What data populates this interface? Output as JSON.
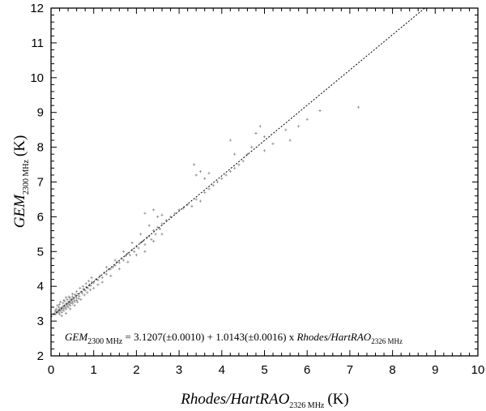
{
  "chart_data": {
    "type": "scatter",
    "xlabel": {
      "main": "Rhodes/HartRAO",
      "sub": "2326 MHz",
      "unit": "(K)"
    },
    "ylabel": {
      "main": "GEM",
      "sub": "2300 MHz",
      "unit": "(K)"
    },
    "xlim": [
      0,
      10
    ],
    "ylim": [
      2,
      12
    ],
    "x_ticks": [
      "0",
      "1",
      "2",
      "3",
      "4",
      "5",
      "6",
      "7",
      "8",
      "9",
      "10"
    ],
    "y_ticks": [
      "2",
      "3",
      "4",
      "5",
      "6",
      "7",
      "8",
      "9",
      "10",
      "11",
      "12"
    ],
    "grid": false,
    "marker_color": "#8a8a8a",
    "fit_line": {
      "intercept": 3.1207,
      "slope": 1.0143,
      "style": "dashed",
      "color": "#000000"
    },
    "equation": {
      "lhs_main": "GEM",
      "lhs_sub": "2300 MHz",
      "middle": " = 3.1207(±0.0010) + 1.0143(±0.0016) x ",
      "rhs_main": "Rhodes/HartRAO",
      "rhs_sub": "2326 MHz"
    },
    "points": [
      [
        0.08,
        3.22
      ],
      [
        0.1,
        3.2
      ],
      [
        0.12,
        3.27
      ],
      [
        0.14,
        3.24
      ],
      [
        0.16,
        3.3
      ],
      [
        0.18,
        3.26
      ],
      [
        0.2,
        3.34
      ],
      [
        0.22,
        3.3
      ],
      [
        0.24,
        3.38
      ],
      [
        0.26,
        3.33
      ],
      [
        0.28,
        3.42
      ],
      [
        0.3,
        3.36
      ],
      [
        0.32,
        3.46
      ],
      [
        0.34,
        3.4
      ],
      [
        0.36,
        3.5
      ],
      [
        0.38,
        3.45
      ],
      [
        0.4,
        3.54
      ],
      [
        0.42,
        3.49
      ],
      [
        0.44,
        3.58
      ],
      [
        0.46,
        3.53
      ],
      [
        0.48,
        3.62
      ],
      [
        0.5,
        3.56
      ],
      [
        0.52,
        3.65
      ],
      [
        0.55,
        3.6
      ],
      [
        0.58,
        3.72
      ],
      [
        0.6,
        3.66
      ],
      [
        0.63,
        3.78
      ],
      [
        0.66,
        3.72
      ],
      [
        0.7,
        3.84
      ],
      [
        0.73,
        3.8
      ],
      [
        0.76,
        3.92
      ],
      [
        0.8,
        3.88
      ],
      [
        0.83,
        3.98
      ],
      [
        0.86,
        3.95
      ],
      [
        0.9,
        4.05
      ],
      [
        0.93,
        4.02
      ],
      [
        0.96,
        4.12
      ],
      [
        1.0,
        4.1
      ],
      [
        1.05,
        4.2
      ],
      [
        1.1,
        4.18
      ],
      [
        0.15,
        3.45
      ],
      [
        0.22,
        3.55
      ],
      [
        0.3,
        3.6
      ],
      [
        0.35,
        3.68
      ],
      [
        0.42,
        3.7
      ],
      [
        0.25,
        3.15
      ],
      [
        0.35,
        3.22
      ],
      [
        0.45,
        3.35
      ],
      [
        0.55,
        3.45
      ],
      [
        0.62,
        3.55
      ],
      [
        0.7,
        3.62
      ],
      [
        0.78,
        3.75
      ],
      [
        0.85,
        3.82
      ],
      [
        0.92,
        3.9
      ],
      [
        0.5,
        3.78
      ],
      [
        0.6,
        3.85
      ],
      [
        0.68,
        3.95
      ],
      [
        0.75,
        4.0
      ],
      [
        0.82,
        4.08
      ],
      [
        0.88,
        4.15
      ],
      [
        1.15,
        4.3
      ],
      [
        1.2,
        4.25
      ],
      [
        1.25,
        4.4
      ],
      [
        1.3,
        4.35
      ],
      [
        1.35,
        4.48
      ],
      [
        1.4,
        4.5
      ],
      [
        1.45,
        4.55
      ],
      [
        1.5,
        4.6
      ],
      [
        1.55,
        4.7
      ],
      [
        1.6,
        4.68
      ],
      [
        1.65,
        4.8
      ],
      [
        1.7,
        4.75
      ],
      [
        1.75,
        4.88
      ],
      [
        1.8,
        4.95
      ],
      [
        1.85,
        4.9
      ],
      [
        1.9,
        5.05
      ],
      [
        1.95,
        5.0
      ],
      [
        2.0,
        5.15
      ],
      [
        2.05,
        5.1
      ],
      [
        2.1,
        5.25
      ],
      [
        2.15,
        5.3
      ],
      [
        2.2,
        5.2
      ],
      [
        2.25,
        5.4
      ],
      [
        2.3,
        5.45
      ],
      [
        2.35,
        5.35
      ],
      [
        2.4,
        5.6
      ],
      [
        2.45,
        5.5
      ],
      [
        2.5,
        5.7
      ],
      [
        2.55,
        5.65
      ],
      [
        2.6,
        5.8
      ],
      [
        1.3,
        4.55
      ],
      [
        1.5,
        4.75
      ],
      [
        1.7,
        5.0
      ],
      [
        1.9,
        5.25
      ],
      [
        2.1,
        5.5
      ],
      [
        2.3,
        5.75
      ],
      [
        2.5,
        6.0
      ],
      [
        2.2,
        6.1
      ],
      [
        2.4,
        6.2
      ],
      [
        2.6,
        6.05
      ],
      [
        1.4,
        4.3
      ],
      [
        1.6,
        4.5
      ],
      [
        1.8,
        4.7
      ],
      [
        2.0,
        4.9
      ],
      [
        2.2,
        5.0
      ],
      [
        2.4,
        5.3
      ],
      [
        2.6,
        5.5
      ],
      [
        2.7,
        5.9
      ],
      [
        2.8,
        6.0
      ],
      [
        2.9,
        6.1
      ],
      [
        3.0,
        6.2
      ],
      [
        3.1,
        6.25
      ],
      [
        3.2,
        6.35
      ],
      [
        3.3,
        6.3
      ],
      [
        3.4,
        6.5
      ],
      [
        3.5,
        6.45
      ],
      [
        3.6,
        6.7
      ],
      [
        3.7,
        6.8
      ],
      [
        3.8,
        6.9
      ],
      [
        3.9,
        7.0
      ],
      [
        3.35,
        7.5
      ],
      [
        3.4,
        7.2
      ],
      [
        3.5,
        7.3
      ],
      [
        3.6,
        7.1
      ],
      [
        3.7,
        7.25
      ],
      [
        4.0,
        7.1
      ],
      [
        4.1,
        7.2
      ],
      [
        4.2,
        7.3
      ],
      [
        4.3,
        7.4
      ],
      [
        4.4,
        7.5
      ],
      [
        4.2,
        8.2
      ],
      [
        4.3,
        7.8
      ],
      [
        4.5,
        7.6
      ],
      [
        4.6,
        7.8
      ],
      [
        4.7,
        8.0
      ],
      [
        4.8,
        8.4
      ],
      [
        4.9,
        8.6
      ],
      [
        5.0,
        8.3
      ],
      [
        5.0,
        7.9
      ],
      [
        5.2,
        8.1
      ],
      [
        5.5,
        8.5
      ],
      [
        5.6,
        8.2
      ],
      [
        5.8,
        8.6
      ],
      [
        6.0,
        8.8
      ],
      [
        6.3,
        9.05
      ],
      [
        7.2,
        9.15
      ],
      [
        1.0,
        3.95
      ],
      [
        1.1,
        4.05
      ],
      [
        1.2,
        4.12
      ],
      [
        0.95,
        4.25
      ],
      [
        0.2,
        3.2
      ],
      [
        0.25,
        3.25
      ],
      [
        0.3,
        3.3
      ],
      [
        0.35,
        3.35
      ],
      [
        0.4,
        3.4
      ],
      [
        0.45,
        3.45
      ],
      [
        0.5,
        3.5
      ],
      [
        0.55,
        3.55
      ],
      [
        0.6,
        3.6
      ],
      [
        0.65,
        3.65
      ],
      [
        0.1,
        3.3
      ],
      [
        0.12,
        3.35
      ],
      [
        0.18,
        3.4
      ],
      [
        0.2,
        3.48
      ],
      [
        0.28,
        3.52
      ],
      [
        0.32,
        3.58
      ],
      [
        0.38,
        3.62
      ],
      [
        0.44,
        3.66
      ],
      [
        0.5,
        3.7
      ],
      [
        0.56,
        3.76
      ]
    ]
  }
}
